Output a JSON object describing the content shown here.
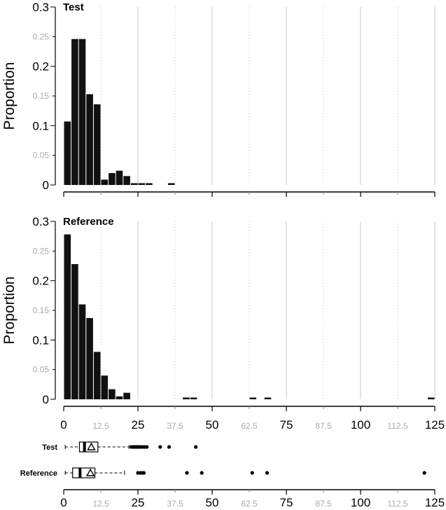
{
  "chart_data": [
    {
      "type": "bar",
      "title": "Test",
      "ylabel": "Proportion",
      "xlim": [
        0,
        125
      ],
      "ylim": [
        0,
        0.3
      ],
      "bin_width": 2.5,
      "yticks": [
        "0",
        "0.05",
        "0.1",
        "0.15",
        "0.2",
        "0.25",
        "0.3"
      ],
      "bins": [
        {
          "x": 0,
          "value": 0.107
        },
        {
          "x": 2.5,
          "value": 0.246
        },
        {
          "x": 5,
          "value": 0.246
        },
        {
          "x": 7.5,
          "value": 0.153
        },
        {
          "x": 10,
          "value": 0.136
        },
        {
          "x": 12.5,
          "value": 0.009
        },
        {
          "x": 15,
          "value": 0.02
        },
        {
          "x": 17.5,
          "value": 0.024
        },
        {
          "x": 20,
          "value": 0.015
        },
        {
          "x": 22.5,
          "value": 0.003
        },
        {
          "x": 25,
          "value": 0.003
        },
        {
          "x": 27.5,
          "value": 0.003
        },
        {
          "x": 35,
          "value": 0.003
        }
      ]
    },
    {
      "type": "bar",
      "title": "Reference",
      "ylabel": "Proportion",
      "xlim": [
        0,
        125
      ],
      "ylim": [
        0,
        0.3
      ],
      "bin_width": 2.5,
      "yticks": [
        "0",
        "0.05",
        "0.1",
        "0.15",
        "0.2",
        "0.25",
        "0.3"
      ],
      "xticks_major": [
        "0",
        "25",
        "50",
        "75",
        "100",
        "125"
      ],
      "xticks_minor": [
        "12.5",
        "37.5",
        "62.5",
        "87.5",
        "112.5"
      ],
      "bins": [
        {
          "x": 0,
          "value": 0.278
        },
        {
          "x": 2.5,
          "value": 0.228
        },
        {
          "x": 5,
          "value": 0.16
        },
        {
          "x": 7.5,
          "value": 0.137
        },
        {
          "x": 10,
          "value": 0.08
        },
        {
          "x": 12.5,
          "value": 0.04
        },
        {
          "x": 15,
          "value": 0.017
        },
        {
          "x": 17.5,
          "value": 0.005
        },
        {
          "x": 20,
          "value": 0.011
        },
        {
          "x": 40,
          "value": 0.003
        },
        {
          "x": 42.5,
          "value": 0.003
        },
        {
          "x": 62.5,
          "value": 0.003
        },
        {
          "x": 67.5,
          "value": 0.003
        },
        {
          "x": 122.5,
          "value": 0.003
        }
      ]
    },
    {
      "type": "boxplot",
      "xlim": [
        0,
        125
      ],
      "xticks_major": [
        "0",
        "25",
        "50",
        "75",
        "100",
        "125"
      ],
      "xticks_minor": [
        "12.5",
        "37.5",
        "62.5",
        "87.5",
        "112.5"
      ],
      "series": [
        {
          "name": "Test",
          "whisker_low": 0.5,
          "q1": 5.3,
          "median": 7.0,
          "q3": 11.5,
          "mean": 9.3,
          "whisker_high": 22.0,
          "outliers": [
            22.8,
            23.5,
            24.0,
            24.6,
            25.2,
            25.8,
            26.5,
            27.2,
            28.0,
            32.5,
            35.5,
            44.5
          ]
        },
        {
          "name": "Reference",
          "whisker_low": 0.5,
          "q1": 3.0,
          "median": 5.5,
          "q3": 10.5,
          "mean": 9.0,
          "whisker_high": 20.5,
          "outliers": [
            25.0,
            25.8,
            26.5,
            27.0,
            41.5,
            46.5,
            63.5,
            68.5,
            121.5
          ]
        }
      ]
    }
  ]
}
